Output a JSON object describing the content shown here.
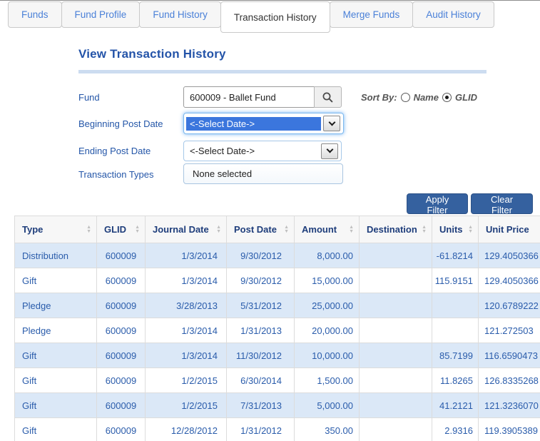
{
  "tabs": [
    {
      "label": "Funds",
      "active": false
    },
    {
      "label": "Fund Profile",
      "active": false
    },
    {
      "label": "Fund History",
      "active": false
    },
    {
      "label": "Transaction History",
      "active": true
    },
    {
      "label": "Merge Funds",
      "active": false
    },
    {
      "label": "Audit History",
      "active": false
    }
  ],
  "page": {
    "title": "View Transaction History"
  },
  "filter": {
    "fund": {
      "label": "Fund",
      "value": "600009 - Ballet Fund",
      "search_icon": "magnifier"
    },
    "sort_by": {
      "label": "Sort By:",
      "options": [
        {
          "label": "Name",
          "selected": false
        },
        {
          "label": "GLID",
          "selected": true
        }
      ]
    },
    "beginning_post_date": {
      "label": "Beginning Post Date",
      "value": "<-Select Date->",
      "focused": true
    },
    "ending_post_date": {
      "label": "Ending Post Date",
      "value": "<-Select Date->"
    },
    "transaction_types": {
      "label": "Transaction Types",
      "value": "None selected"
    },
    "apply_button": "Apply Filter",
    "clear_button": "Clear Filter"
  },
  "icons": {
    "search": "magnifier-icon",
    "select_arrow": "chevron-down-icon",
    "sort": "up-down-arrows-icon",
    "sort_up_glyph": "▲",
    "sort_down_glyph": "▼"
  },
  "colors": {
    "accent_blue": "#2353a8",
    "link_blue": "#4a80d8",
    "button_blue": "#35619f",
    "selection_blue": "#3b76dd",
    "row_stripe": "#dbe8f7",
    "header_text": "#1e3d7b",
    "cell_text": "#2a5cab"
  },
  "table": {
    "columns": [
      "Type",
      "GLID",
      "Journal Date",
      "Post Date",
      "Amount",
      "Destination",
      "Units",
      "Unit Price"
    ],
    "rows": [
      [
        "Distribution",
        "600009",
        "1/3/2014",
        "9/30/2012",
        "8,000.00",
        "",
        "-61.8214",
        "129.4050366"
      ],
      [
        "Gift",
        "600009",
        "1/3/2014",
        "9/30/2012",
        "15,000.00",
        "",
        "115.9151",
        "129.4050366"
      ],
      [
        "Pledge",
        "600009",
        "3/28/2013",
        "5/31/2012",
        "25,000.00",
        "",
        "",
        "120.6789222"
      ],
      [
        "Pledge",
        "600009",
        "1/3/2014",
        "1/31/2013",
        "20,000.00",
        "",
        "",
        "121.272503"
      ],
      [
        "Gift",
        "600009",
        "1/3/2014",
        "11/30/2012",
        "10,000.00",
        "",
        "85.7199",
        "116.6590473"
      ],
      [
        "Gift",
        "600009",
        "1/2/2015",
        "6/30/2014",
        "1,500.00",
        "",
        "11.8265",
        "126.8335268"
      ],
      [
        "Gift",
        "600009",
        "1/2/2015",
        "7/31/2013",
        "5,000.00",
        "",
        "41.2121",
        "121.3236070"
      ],
      [
        "Gift",
        "600009",
        "12/28/2012",
        "1/31/2012",
        "350.00",
        "",
        "2.9316",
        "119.3905389"
      ]
    ]
  }
}
